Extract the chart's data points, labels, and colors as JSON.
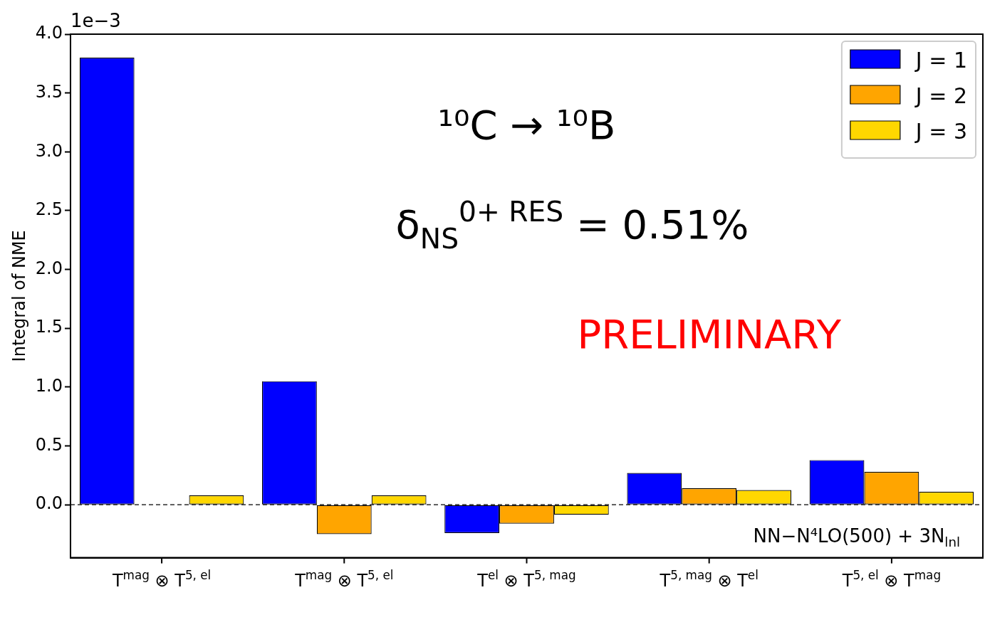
{
  "chart_data": {
    "type": "bar",
    "ylabel": "Integral of NME",
    "categories": [
      "T$^{mag}$ ⊗ T$^{5, el}$",
      "T$^{mag}$ ⊗ T$^{5, el}$",
      "T$^{el}$ ⊗ T$^{5, mag}$",
      "T$^{5, mag}$ ⊗ T$^{el}$",
      "T$^{5, el}$ ⊗ T$^{mag}$"
    ],
    "series": [
      {
        "name": "J = 1",
        "color": "#0000ff",
        "values": [
          3.8,
          1.05,
          -0.24,
          0.27,
          0.38
        ]
      },
      {
        "name": "J = 2",
        "color": "#ffa500",
        "values": [
          null,
          -0.25,
          -0.16,
          0.14,
          0.28
        ]
      },
      {
        "name": "J = 3",
        "color": "#ffd700",
        "values": [
          0.08,
          0.08,
          -0.085,
          0.125,
          0.11
        ]
      }
    ],
    "ylim": [
      -0.45,
      4.0
    ],
    "yticks": [
      {
        "value": 0,
        "label": "0.0"
      },
      {
        "value": 0.5,
        "label": "0.5"
      },
      {
        "value": 1,
        "label": "1.0"
      },
      {
        "value": 1.5,
        "label": "1.5"
      },
      {
        "value": 2,
        "label": "2.0"
      },
      {
        "value": 2.5,
        "label": "2.5"
      },
      {
        "value": 3,
        "label": "3.0"
      },
      {
        "value": 3.5,
        "label": "3.5"
      },
      {
        "value": 4,
        "label": "4.0"
      }
    ],
    "ref_lines": [
      {
        "axis": "y",
        "value": 0,
        "color": "#000000",
        "line_style": "dashed"
      }
    ],
    "annotations": [
      "1e−3",
      "¹⁰C → ¹⁰B",
      "δ$_{NS}$$^{0+ RES}$ = 0.51%",
      "PRELIMINARY",
      "NN−N⁴LO(500) + 3N$_{lnl}$"
    ],
    "legend": "top right",
    "grid": false
  }
}
